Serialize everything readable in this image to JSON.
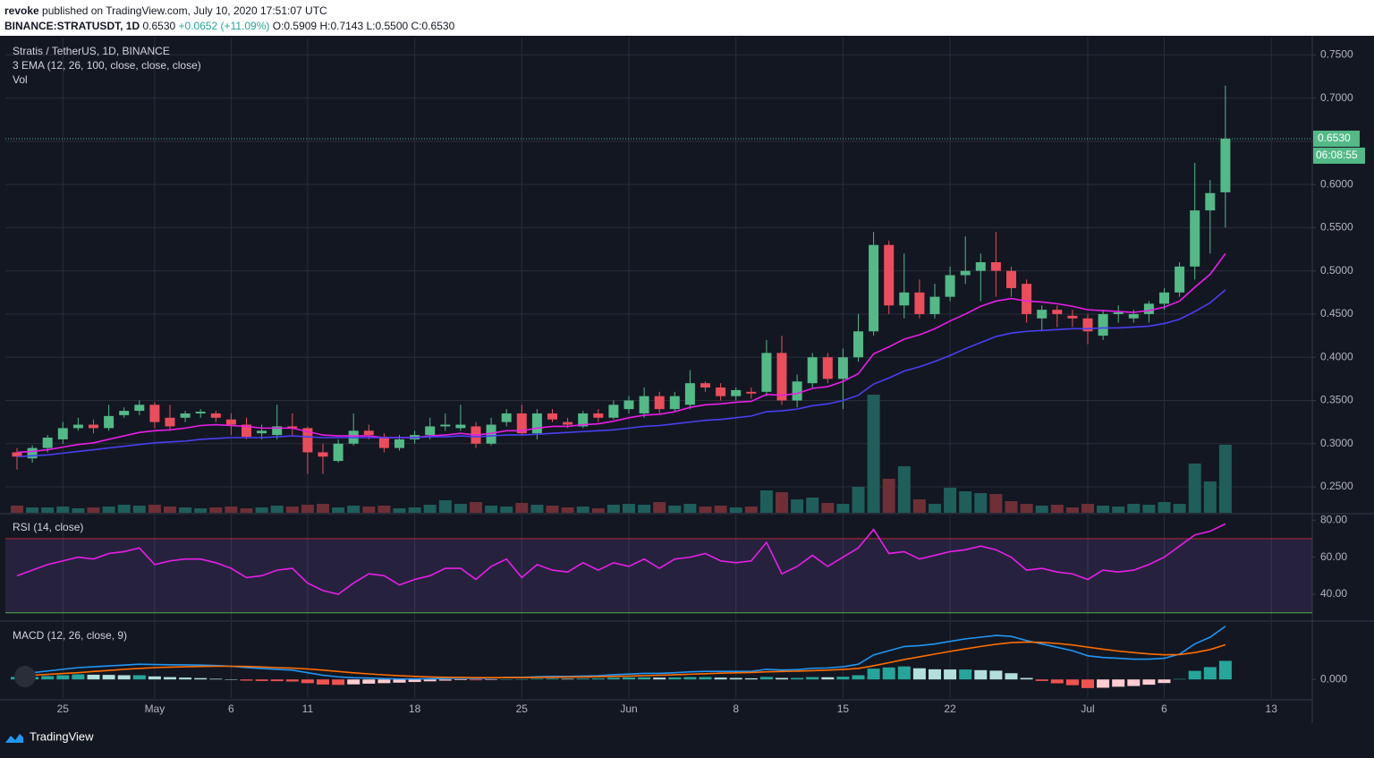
{
  "header": {
    "author": "revoke",
    "published": "published on TradingView.com, July 10, 2020 17:51:07 UTC",
    "symbol": "BINANCE:STRATUSDT, 1D",
    "price": "0.6530",
    "change": "+0.0652 (+11.09%)",
    "open": "O:0.5909",
    "high": "H:0.7143",
    "low": "L:0.5500",
    "close": "C:0.6530"
  },
  "footer": {
    "brand": "TradingView"
  },
  "chart_data": [
    {
      "type": "candlestick",
      "title": "Stratis / TetherUS, 1D, BINANCE",
      "indicators": [
        "3 EMA (12, 26, 100, close, close, close)",
        "Vol"
      ],
      "categories": [
        null,
        null,
        null,
        "25",
        null,
        null,
        null,
        null,
        null,
        "May",
        null,
        null,
        null,
        null,
        "6",
        null,
        null,
        null,
        null,
        "11",
        null,
        null,
        null,
        null,
        null,
        null,
        "18",
        null,
        null,
        null,
        null,
        null,
        null,
        "25",
        null,
        null,
        null,
        null,
        null,
        null,
        "Jun",
        null,
        null,
        null,
        null,
        null,
        null,
        "8",
        null,
        null,
        null,
        null,
        null,
        null,
        "15",
        null,
        null,
        null,
        null,
        null,
        null,
        "22",
        null,
        null,
        null,
        null,
        null,
        null,
        null,
        null,
        "Jul",
        null,
        null,
        null,
        null,
        "6",
        null,
        null,
        null,
        null,
        null,
        null,
        "13"
      ],
      "open": [
        0.29,
        0.283,
        0.295,
        0.305,
        0.318,
        0.322,
        0.318,
        0.333,
        0.338,
        0.345,
        0.33,
        0.33,
        0.335,
        0.335,
        0.328,
        0.322,
        0.312,
        0.31,
        0.32,
        0.318,
        0.29,
        0.28,
        0.3,
        0.315,
        0.308,
        0.295,
        0.305,
        0.31,
        0.32,
        0.318,
        0.32,
        0.3,
        0.325,
        0.335,
        0.312,
        0.335,
        0.325,
        0.32,
        0.335,
        0.33,
        0.34,
        0.335,
        0.355,
        0.34,
        0.345,
        0.37,
        0.365,
        0.355,
        0.36,
        0.36,
        0.405,
        0.35,
        0.37,
        0.4,
        0.375,
        0.4,
        0.43,
        0.53,
        0.46,
        0.475,
        0.45,
        0.47,
        0.495,
        0.5,
        0.51,
        0.5,
        0.485,
        0.445,
        0.455,
        0.448,
        0.445,
        0.425,
        0.45,
        0.445,
        0.45,
        0.462,
        0.475,
        0.505,
        0.57,
        0.5909,
        null,
        null,
        null
      ],
      "high": [
        0.295,
        0.298,
        0.31,
        0.325,
        0.33,
        0.328,
        0.345,
        0.342,
        0.35,
        0.348,
        0.345,
        0.338,
        0.34,
        0.338,
        0.335,
        0.33,
        0.322,
        0.345,
        0.335,
        0.32,
        0.3,
        0.305,
        0.335,
        0.322,
        0.312,
        0.31,
        0.315,
        0.33,
        0.335,
        0.345,
        0.325,
        0.33,
        0.34,
        0.345,
        0.34,
        0.34,
        0.33,
        0.338,
        0.34,
        0.35,
        0.355,
        0.365,
        0.36,
        0.36,
        0.385,
        0.372,
        0.37,
        0.365,
        0.365,
        0.42,
        0.425,
        0.38,
        0.405,
        0.405,
        0.41,
        0.45,
        0.545,
        0.535,
        0.52,
        0.49,
        0.485,
        0.505,
        0.54,
        0.52,
        0.545,
        0.505,
        0.49,
        0.46,
        0.46,
        0.455,
        0.45,
        0.455,
        0.46,
        0.455,
        0.465,
        0.48,
        0.51,
        0.625,
        0.605,
        0.7143,
        null,
        null,
        null
      ],
      "low": [
        0.27,
        0.278,
        0.29,
        0.3,
        0.315,
        0.312,
        0.315,
        0.33,
        0.333,
        0.318,
        0.315,
        0.325,
        0.33,
        0.325,
        0.31,
        0.305,
        0.305,
        0.305,
        0.31,
        0.265,
        0.265,
        0.278,
        0.298,
        0.305,
        0.29,
        0.292,
        0.3,
        0.305,
        0.315,
        0.315,
        0.295,
        0.298,
        0.32,
        0.31,
        0.305,
        0.325,
        0.318,
        0.318,
        0.325,
        0.328,
        0.335,
        0.33,
        0.335,
        0.338,
        0.34,
        0.36,
        0.35,
        0.35,
        0.352,
        0.355,
        0.345,
        0.342,
        0.365,
        0.37,
        0.34,
        0.395,
        0.425,
        0.45,
        0.445,
        0.445,
        0.445,
        0.465,
        0.485,
        0.465,
        0.47,
        0.47,
        0.44,
        0.43,
        0.435,
        0.435,
        0.415,
        0.42,
        0.44,
        0.44,
        0.44,
        0.455,
        0.47,
        0.49,
        0.52,
        0.55,
        null,
        null,
        null
      ],
      "close": [
        0.285,
        0.295,
        0.307,
        0.318,
        0.322,
        0.318,
        0.332,
        0.338,
        0.345,
        0.325,
        0.32,
        0.335,
        0.337,
        0.33,
        0.322,
        0.308,
        0.315,
        0.32,
        0.318,
        0.29,
        0.285,
        0.3,
        0.315,
        0.31,
        0.295,
        0.305,
        0.31,
        0.32,
        0.322,
        0.322,
        0.3,
        0.322,
        0.335,
        0.312,
        0.335,
        0.328,
        0.322,
        0.335,
        0.33,
        0.345,
        0.35,
        0.355,
        0.34,
        0.355,
        0.37,
        0.365,
        0.355,
        0.362,
        0.358,
        0.405,
        0.35,
        0.372,
        0.4,
        0.375,
        0.4,
        0.43,
        0.53,
        0.46,
        0.475,
        0.45,
        0.47,
        0.495,
        0.5,
        0.51,
        0.5,
        0.48,
        0.45,
        0.455,
        0.45,
        0.445,
        0.43,
        0.45,
        0.452,
        0.45,
        0.462,
        0.475,
        0.505,
        0.57,
        0.59,
        0.653,
        null,
        null,
        null
      ],
      "up_color": "#53b987",
      "down_color": "#eb4d5c",
      "series": [
        {
          "color": "#e91ee8",
          "values": [
            0.29,
            0.291,
            0.293,
            0.296,
            0.299,
            0.301,
            0.305,
            0.309,
            0.313,
            0.315,
            0.316,
            0.318,
            0.321,
            0.322,
            0.321,
            0.32,
            0.318,
            0.318,
            0.318,
            0.314,
            0.31,
            0.309,
            0.309,
            0.309,
            0.307,
            0.307,
            0.307,
            0.309,
            0.31,
            0.312,
            0.31,
            0.312,
            0.315,
            0.315,
            0.318,
            0.32,
            0.32,
            0.322,
            0.323,
            0.326,
            0.33,
            0.333,
            0.334,
            0.337,
            0.342,
            0.345,
            0.346,
            0.348,
            0.349,
            0.357,
            0.356,
            0.358,
            0.364,
            0.366,
            0.372,
            0.381,
            0.404,
            0.412,
            0.421,
            0.426,
            0.433,
            0.442,
            0.45,
            0.459,
            0.465,
            0.468,
            0.465,
            0.464,
            0.462,
            0.459,
            0.455,
            0.454,
            0.453,
            0.452,
            0.454,
            0.458,
            0.465,
            0.481,
            0.496,
            0.52,
            null,
            null,
            null
          ]
        },
        {
          "color": "#4a3ff2",
          "values": [
            0.285,
            0.286,
            0.287,
            0.289,
            0.291,
            0.293,
            0.295,
            0.297,
            0.299,
            0.301,
            0.302,
            0.303,
            0.305,
            0.306,
            0.307,
            0.307,
            0.307,
            0.308,
            0.309,
            0.308,
            0.307,
            0.307,
            0.307,
            0.307,
            0.307,
            0.307,
            0.307,
            0.308,
            0.308,
            0.309,
            0.308,
            0.309,
            0.31,
            0.31,
            0.311,
            0.312,
            0.313,
            0.314,
            0.315,
            0.316,
            0.318,
            0.32,
            0.321,
            0.323,
            0.325,
            0.327,
            0.328,
            0.33,
            0.332,
            0.337,
            0.338,
            0.34,
            0.344,
            0.346,
            0.35,
            0.356,
            0.369,
            0.376,
            0.384,
            0.389,
            0.395,
            0.402,
            0.41,
            0.417,
            0.424,
            0.428,
            0.43,
            0.431,
            0.432,
            0.433,
            0.433,
            0.434,
            0.434,
            0.435,
            0.436,
            0.439,
            0.444,
            0.453,
            0.463,
            0.478,
            null,
            null,
            null
          ]
        }
      ],
      "volume": {
        "vlim": [
          0,
          531
        ],
        "values": [
          8,
          6,
          6,
          7,
          5,
          6,
          7,
          9,
          8,
          9,
          7,
          6,
          5,
          6,
          7,
          5,
          6,
          8,
          7,
          9,
          10,
          6,
          8,
          7,
          8,
          5,
          6,
          9,
          14,
          10,
          12,
          8,
          7,
          11,
          9,
          8,
          6,
          7,
          5,
          9,
          10,
          9,
          12,
          8,
          10,
          7,
          8,
          6,
          7,
          25,
          23,
          15,
          17,
          11,
          10,
          29,
          132,
          38,
          52,
          15,
          10,
          28,
          24,
          22,
          21,
          13,
          10,
          8,
          9,
          6,
          10,
          8,
          7,
          10,
          9,
          12,
          10,
          55,
          35,
          76,
          null,
          null,
          null
        ]
      },
      "last_price_label": "0.6530",
      "countdown": "06:08:55",
      "ylim": [
        0.22,
        0.77
      ],
      "yticks": [
        {
          "value": 0.25,
          "label": "0.2500"
        },
        {
          "value": 0.3,
          "label": "0.3000"
        },
        {
          "value": 0.35,
          "label": "0.3500"
        },
        {
          "value": 0.4,
          "label": "0.4000"
        },
        {
          "value": 0.45,
          "label": "0.4500"
        },
        {
          "value": 0.5,
          "label": "0.5000"
        },
        {
          "value": 0.55,
          "label": "0.5500"
        },
        {
          "value": 0.6,
          "label": "0.6000"
        },
        {
          "value": 0.65,
          "label": "0.6500"
        },
        {
          "value": 0.7,
          "label": "0.7000"
        },
        {
          "value": 0.75,
          "label": "0.7500"
        }
      ],
      "grid": true
    },
    {
      "type": "line",
      "title": "RSI (14, close)",
      "series": [
        {
          "color": "#e91ee8",
          "values": [
            50,
            53,
            56,
            58,
            60,
            59,
            62,
            63,
            65,
            56,
            58,
            59,
            59,
            57,
            54,
            49,
            50,
            53,
            54,
            46,
            42,
            40,
            46,
            51,
            50,
            45,
            48,
            50,
            54,
            54,
            48,
            55,
            59,
            49,
            56,
            53,
            52,
            57,
            53,
            57,
            55,
            59,
            54,
            59,
            60,
            62,
            58,
            57,
            58,
            68,
            51,
            55,
            61,
            55,
            60,
            65,
            75,
            62,
            63,
            59,
            61,
            63,
            64,
            66,
            64,
            60,
            53,
            54,
            52,
            51,
            48,
            53,
            52,
            53,
            56,
            60,
            66,
            72,
            74,
            78,
            null,
            null,
            null
          ]
        }
      ],
      "upper_band": 70,
      "lower_band": 30,
      "ylim": [
        26,
        83
      ],
      "yticks": [
        {
          "value": 40,
          "label": "40.00"
        },
        {
          "value": 60,
          "label": "60.00"
        },
        {
          "value": 80,
          "label": "80.00"
        }
      ]
    },
    {
      "type": "macd",
      "title": "MACD (12, 26, close, 9)",
      "series": [
        {
          "color": "#2196f3",
          "values": [
            0.0035,
            0.004,
            0.005,
            0.006,
            0.007,
            0.0075,
            0.008,
            0.0085,
            0.009,
            0.0088,
            0.0087,
            0.0086,
            0.0085,
            0.0082,
            0.0078,
            0.007,
            0.0065,
            0.006,
            0.0055,
            0.004,
            0.0025,
            0.0015,
            0.001,
            0.0008,
            0.0005,
            0.0003,
            0.0003,
            0.0004,
            0.0006,
            0.0008,
            0.0006,
            0.0008,
            0.0012,
            0.0012,
            0.0016,
            0.0018,
            0.0018,
            0.002,
            0.0022,
            0.0028,
            0.0032,
            0.0036,
            0.0036,
            0.004,
            0.0045,
            0.0048,
            0.0048,
            0.0048,
            0.0048,
            0.006,
            0.0056,
            0.0058,
            0.0066,
            0.0068,
            0.0075,
            0.009,
            0.0145,
            0.017,
            0.0195,
            0.02,
            0.021,
            0.0225,
            0.024,
            0.025,
            0.026,
            0.0255,
            0.023,
            0.021,
            0.019,
            0.017,
            0.014,
            0.013,
            0.0125,
            0.012,
            0.012,
            0.0125,
            0.015,
            0.021,
            0.025,
            0.0315,
            null,
            null,
            null
          ]
        },
        {
          "color": "#ff6d00",
          "values": [
            0.002,
            0.0025,
            0.003,
            0.0035,
            0.004,
            0.0047,
            0.0053,
            0.006,
            0.0065,
            0.007,
            0.0073,
            0.0075,
            0.0077,
            0.0078,
            0.0078,
            0.0077,
            0.0074,
            0.007,
            0.0067,
            0.0062,
            0.0055,
            0.0047,
            0.0039,
            0.0033,
            0.0027,
            0.0022,
            0.0018,
            0.0015,
            0.0013,
            0.0012,
            0.0011,
            0.0011,
            0.0011,
            0.0011,
            0.0012,
            0.0013,
            0.0014,
            0.0015,
            0.0016,
            0.0018,
            0.002,
            0.0023,
            0.0025,
            0.0028,
            0.0031,
            0.0034,
            0.0037,
            0.0039,
            0.0041,
            0.0045,
            0.0047,
            0.0049,
            0.0052,
            0.0055,
            0.0059,
            0.0065,
            0.0081,
            0.0099,
            0.0118,
            0.0134,
            0.015,
            0.0166,
            0.0181,
            0.0195,
            0.0208,
            0.0218,
            0.0221,
            0.0219,
            0.0213,
            0.0204,
            0.0191,
            0.0179,
            0.0168,
            0.0159,
            0.0151,
            0.0146,
            0.0147,
            0.0159,
            0.0177,
            0.0205,
            null,
            null,
            null
          ]
        }
      ],
      "histogram": {
        "values": [
          0.0015,
          0.0015,
          0.002,
          0.0025,
          0.003,
          0.0028,
          0.0027,
          0.0025,
          0.0025,
          0.0018,
          0.0014,
          0.0011,
          0.0008,
          0.0004,
          0,
          -0.0007,
          -0.0009,
          -0.001,
          -0.0012,
          -0.0022,
          -0.003,
          -0.0032,
          -0.0029,
          -0.0025,
          -0.0022,
          -0.0019,
          -0.0015,
          -0.0011,
          -0.0007,
          -0.0004,
          -0.0005,
          -0.0003,
          0.0001,
          0.0001,
          0.0004,
          0.0005,
          0.0004,
          0.0005,
          0.0006,
          0.001,
          0.0012,
          0.0013,
          0.0011,
          0.0012,
          0.0014,
          0.0014,
          0.0011,
          0.0009,
          0.0007,
          0.0015,
          0.0009,
          0.0009,
          0.0014,
          0.0013,
          0.0016,
          0.0025,
          0.0064,
          0.0071,
          0.0077,
          0.0066,
          0.006,
          0.0059,
          0.0059,
          0.0055,
          0.0052,
          0.0037,
          0.0009,
          -0.0009,
          -0.0023,
          -0.0034,
          -0.0051,
          -0.0049,
          -0.0043,
          -0.0039,
          -0.0031,
          -0.0021,
          0.0003,
          0.0051,
          0.0073,
          0.011,
          null,
          null,
          null
        ],
        "colors": [
          "#26a69a",
          "#b2dfdb",
          "#ef5350",
          "#ffcdd2"
        ]
      },
      "ylim": [
        -0.011,
        0.034
      ],
      "yticks": [
        {
          "value": 0,
          "label": "0.000"
        }
      ]
    }
  ]
}
